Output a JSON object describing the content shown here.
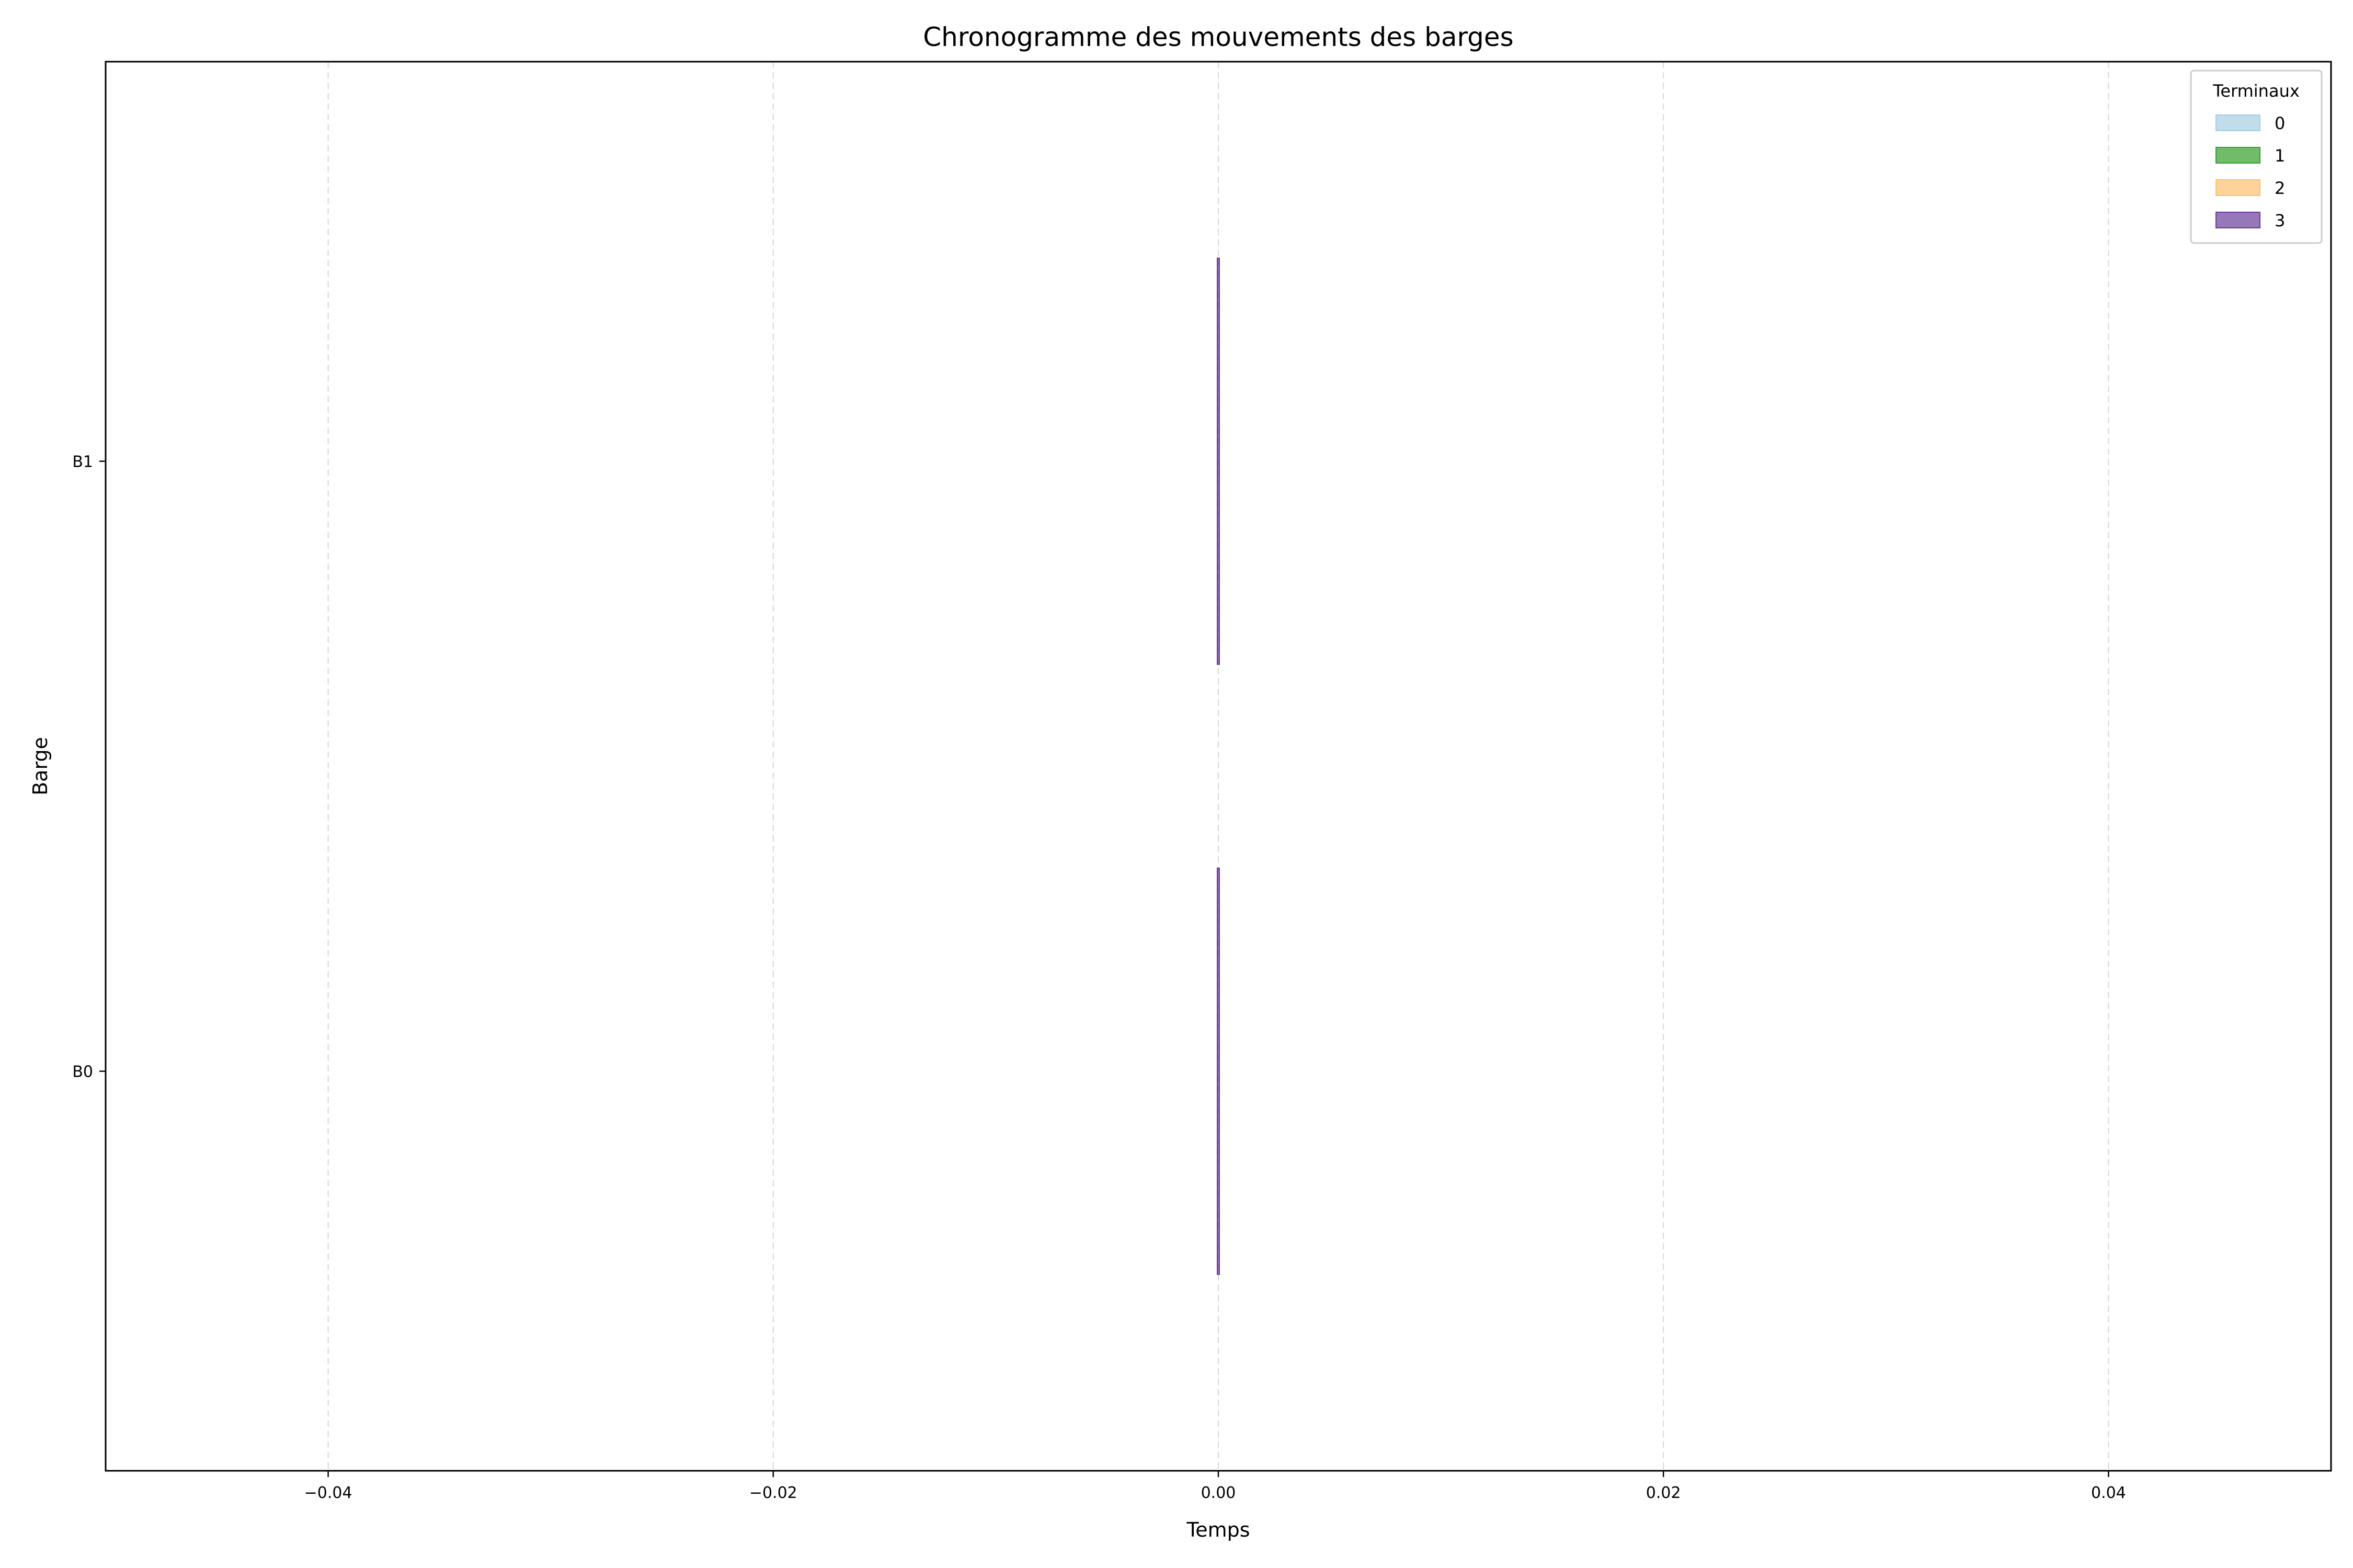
{
  "chart_data": {
    "type": "gantt",
    "title": "Chronogramme des mouvements des barges",
    "xlabel": "Temps",
    "ylabel": "Barge",
    "xlim": [
      -0.05,
      0.05
    ],
    "x_ticks": [
      -0.04,
      -0.02,
      0.0,
      0.02,
      0.04
    ],
    "x_tick_labels": [
      "−0.04",
      "−0.02",
      "0.00",
      "0.02",
      "0.04"
    ],
    "categories": [
      "B0",
      "B1"
    ],
    "grid": "x, dashed",
    "legend": {
      "title": "Terminaux",
      "placement": "top-right",
      "entries": [
        {
          "label": "0",
          "color": "#a6cee3"
        },
        {
          "label": "1",
          "color": "#33a02c"
        },
        {
          "label": "2",
          "color": "#fdbf6f"
        },
        {
          "label": "3",
          "color": "#6a3d9a"
        }
      ]
    },
    "segments": [
      {
        "barge": "B0",
        "terminal": "3",
        "start": 0.0,
        "end": 0.0
      },
      {
        "barge": "B1",
        "terminal": "3",
        "start": 0.0,
        "end": 0.0
      }
    ]
  }
}
